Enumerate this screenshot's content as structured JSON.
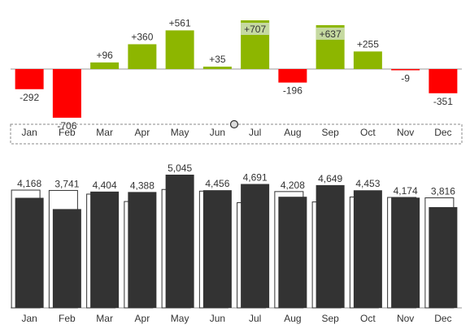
{
  "colors": {
    "positive": "#8db600",
    "positive_highlight": "#c5d9a0",
    "negative": "#ff0000",
    "actual_bar": "#333333",
    "reference_outline": "#333333",
    "text": "#333333",
    "axis": "#999999"
  },
  "chart_data": [
    {
      "type": "bar",
      "subtype": "variance",
      "categories": [
        "Jan",
        "Feb",
        "Mar",
        "Apr",
        "May",
        "Jun",
        "Jul",
        "Aug",
        "Sep",
        "Oct",
        "Nov",
        "Dec"
      ],
      "values": [
        -292,
        -706,
        96,
        360,
        561,
        35,
        707,
        -196,
        637,
        255,
        -9,
        -351
      ],
      "labels": [
        "-292",
        "-706",
        "+96",
        "+360",
        "+561",
        "+35",
        "+707",
        "-196",
        "+637",
        "+255",
        "-9",
        "-351"
      ],
      "highlighted": [
        "Jul",
        "Sep"
      ],
      "ylim": [
        -720,
        720
      ],
      "grid": false,
      "legend": "none"
    },
    {
      "type": "bar",
      "subtype": "actual-vs-reference",
      "categories": [
        "Jan",
        "Feb",
        "Mar",
        "Apr",
        "May",
        "Jun",
        "Jul",
        "Aug",
        "Sep",
        "Oct",
        "Nov",
        "Dec"
      ],
      "series": [
        {
          "values": [
            4168,
            3741,
            4404,
            4388,
            5045,
            4456,
            4691,
            4208,
            4649,
            4453,
            4174,
            3816
          ]
        },
        {
          "values": [
            4460,
            4447,
            4308,
            4028,
            4484,
            4421,
            3984,
            4404,
            4012,
            4198,
            4183,
            4167
          ]
        }
      ],
      "labels": [
        "4,168",
        "3,741",
        "4,404",
        "4,388",
        "5,045",
        "4,456",
        "4,691",
        "4,208",
        "4,649",
        "4,453",
        "4,174",
        "3,816"
      ],
      "ylim": [
        0,
        5200
      ],
      "grid": false,
      "legend": "none"
    }
  ]
}
